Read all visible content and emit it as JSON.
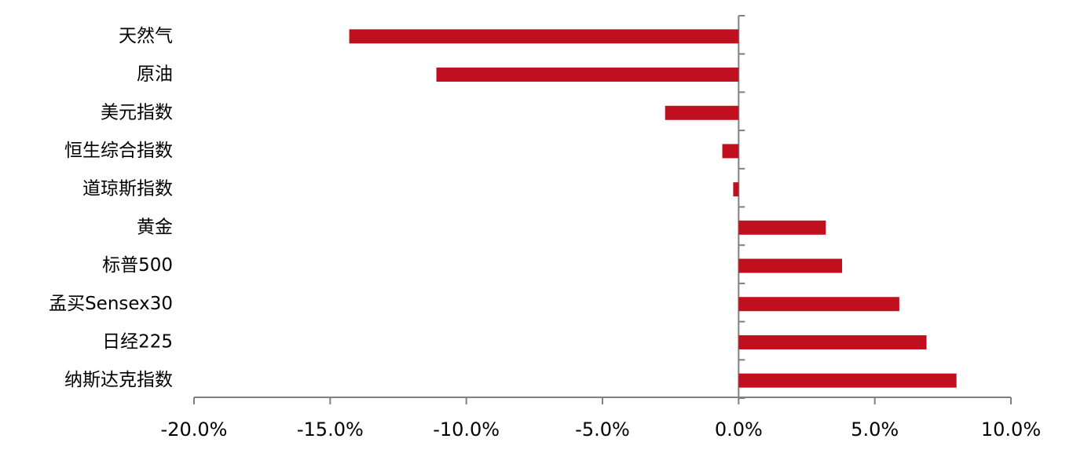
{
  "chart_data": {
    "type": "bar",
    "orientation": "horizontal",
    "categories": [
      "天然气",
      "原油",
      "美元指数",
      "恒生综合指数",
      "道琼斯指数",
      "黄金",
      "标普500",
      "孟买Sensex30",
      "日经225",
      "纳斯达克指数"
    ],
    "values": [
      -14.3,
      -11.1,
      -2.7,
      -0.6,
      -0.2,
      3.2,
      3.8,
      5.9,
      6.9,
      8.0
    ],
    "color": "#c00f1e",
    "xlim": [
      -20,
      10
    ],
    "xticks": [
      {
        "value": -20,
        "label": "-20.0%"
      },
      {
        "value": -15,
        "label": "-15.0%"
      },
      {
        "value": -10,
        "label": "-10.0%"
      },
      {
        "value": -5,
        "label": "-5.0%"
      },
      {
        "value": 0,
        "label": "0.0%"
      },
      {
        "value": 5,
        "label": "5.0%"
      },
      {
        "value": 10,
        "label": "10.0%"
      }
    ],
    "grid": false
  }
}
